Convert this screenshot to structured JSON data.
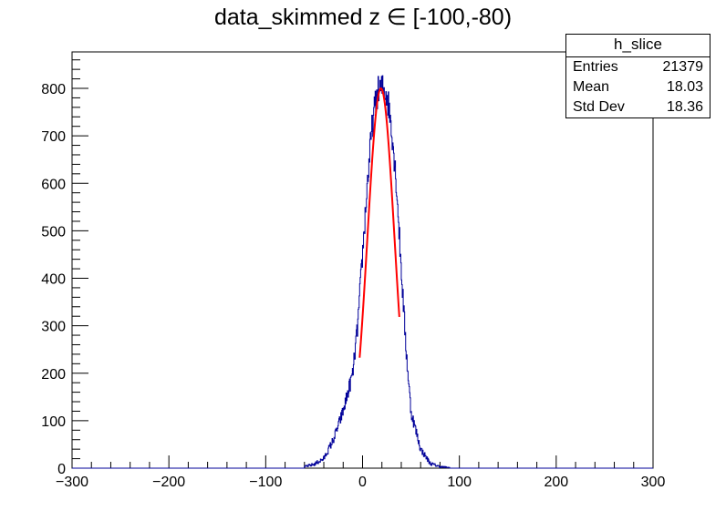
{
  "chart_data": {
    "type": "histogram",
    "title": "data_skimmed z  ∈ [-100,-80)",
    "xlim": [
      -300,
      300
    ],
    "ylim": [
      0,
      880
    ],
    "x_ticks": [
      -300,
      -200,
      -100,
      0,
      100,
      200,
      300
    ],
    "y_ticks": [
      0,
      100,
      200,
      300,
      400,
      500,
      600,
      700,
      800
    ],
    "histogram_color": "#000099",
    "fit_color": "#ff0000",
    "stats": {
      "name": "h_slice",
      "rows": [
        {
          "label": "Entries",
          "value": "21379"
        },
        {
          "label": "Mean",
          "value": "18.03"
        },
        {
          "label": "Std Dev",
          "value": "18.36"
        }
      ]
    },
    "histogram_profile": {
      "x": [
        -60,
        -50,
        -40,
        -30,
        -20,
        -10,
        -5,
        0,
        5,
        10,
        15,
        20,
        25,
        30,
        35,
        40,
        45,
        50,
        60,
        70,
        80,
        90
      ],
      "counts": [
        3,
        8,
        20,
        60,
        120,
        200,
        300,
        450,
        600,
        720,
        790,
        800,
        790,
        720,
        600,
        420,
        250,
        120,
        40,
        10,
        3,
        1
      ]
    },
    "fit": {
      "function": "gaus",
      "constant": 800,
      "mean": 19,
      "sigma": 14,
      "range": [
        -3,
        38
      ]
    }
  }
}
